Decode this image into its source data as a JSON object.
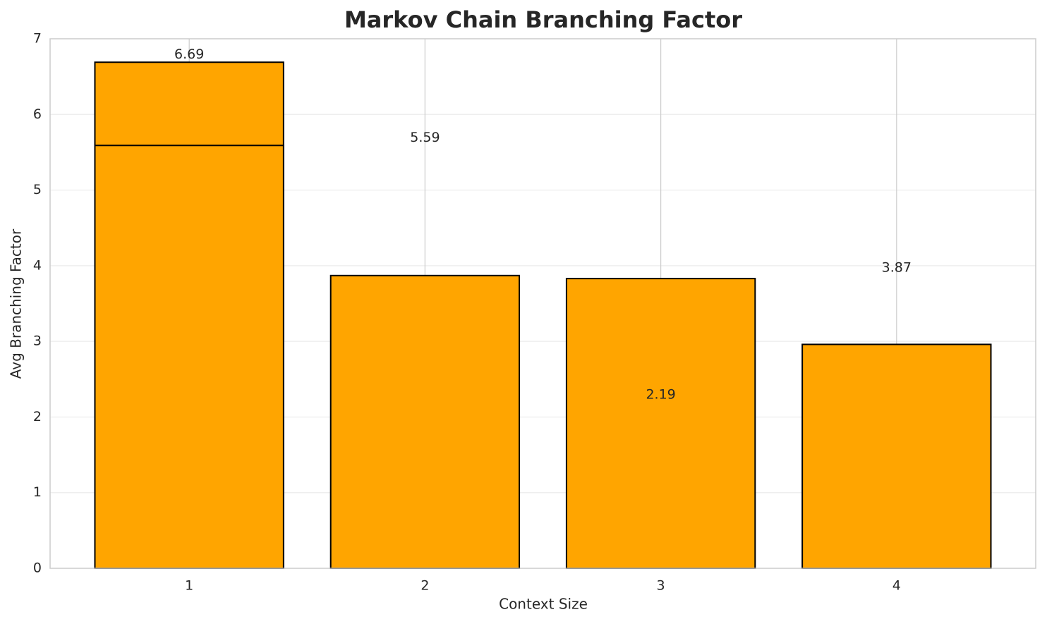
{
  "chart_data": {
    "type": "bar",
    "title": "Markov Chain Branching Factor",
    "x_label": "Context Size",
    "y_label": "Avg Branching Factor",
    "x": [
      1,
      2,
      3,
      4
    ],
    "series": [
      {
        "color": "#ffa500",
        "values": [
          6.69,
          3.87,
          3.83,
          2.96
        ]
      },
      {
        "color": "#ffa500",
        "values": [
          5.59,
          null,
          null,
          null
        ]
      }
    ],
    "annotations": [
      {
        "x": 1,
        "y": 6.69
      },
      {
        "x": 2,
        "y": 5.59
      },
      {
        "x": 3,
        "y": 2.19
      },
      {
        "x": 4,
        "y": 3.87
      }
    ],
    "xlim": [
      0.41,
      4.59
    ],
    "xticks": [
      1,
      2,
      3,
      4
    ],
    "ylim": [
      0,
      7
    ],
    "yticks": [
      0,
      1,
      2,
      3,
      4,
      5,
      6,
      7
    ],
    "grid": true
  }
}
